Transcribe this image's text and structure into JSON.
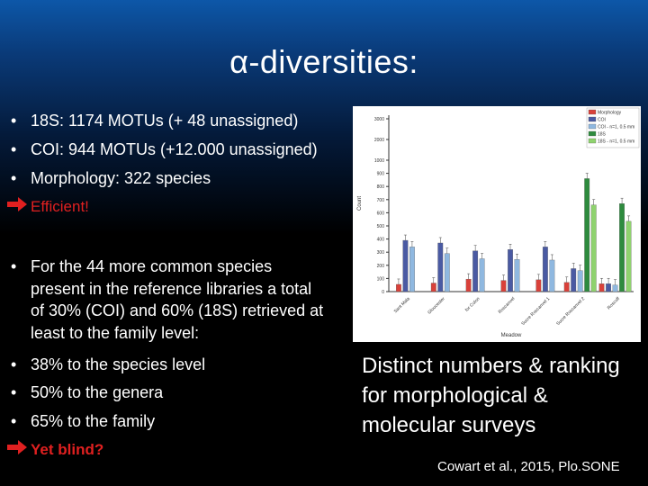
{
  "slide": {
    "title": "α-diversities:",
    "bullets_top": [
      "18S: 1174 MOTUs (+ 48 unassigned)",
      "COI: 944 MOTUs (+12.000 unassigned)",
      "Morphology: 322 species"
    ],
    "efficient": "Efficient!",
    "bullets_bottom": [
      "For the 44 more common species present in the reference libraries a total of 30% (COI) and 60% (18S) retrieved at least to the family level:",
      "38% to the species level",
      "50% to the genera",
      "65% to the family"
    ],
    "yet_blind": "Yet blind?",
    "right_text": "Distinct numbers & ranking for morphological & molecular surveys",
    "citation": "Cowart et al., 2015, Plo.SONE",
    "colors": {
      "arrow_red": "#e02020",
      "bullet": "#ffffff"
    }
  },
  "chart_data": {
    "type": "bar",
    "xlabel": "Meadow",
    "ylabel": "Count",
    "yticks": [
      0,
      100,
      200,
      300,
      400,
      500,
      600,
      700,
      800,
      900,
      1000,
      2000,
      3000
    ],
    "categories": [
      "Sant Mala",
      "Gloucester",
      "for Colon",
      "Roscanvel",
      "Sucre Roscanvel 1",
      "Sucre Roscanvel 2",
      "Roscoff"
    ],
    "legend": [
      "Morphology",
      "COI",
      "COI - n=1, 0.5 mm",
      "18S",
      "18S - n=1, 0.5 mm"
    ],
    "legend_position": "top-right",
    "series": [
      {
        "name": "Morphology",
        "color": "#d9413a",
        "values": [
          55,
          65,
          95,
          85,
          90,
          70,
          60
        ]
      },
      {
        "name": "COI",
        "color": "#4a5aa3",
        "values": [
          390,
          370,
          310,
          320,
          340,
          175,
          60
        ]
      },
      {
        "name": "COI - n=1, 0.5 mm",
        "color": "#8fb8e0",
        "values": [
          340,
          290,
          250,
          245,
          240,
          160,
          50
        ]
      },
      {
        "name": "18S",
        "color": "#2e8b3e",
        "values": [
          null,
          null,
          null,
          null,
          null,
          860,
          670
        ]
      },
      {
        "name": "18S - n=1, 0.5 mm",
        "color": "#8fd36e",
        "values": [
          null,
          null,
          null,
          null,
          null,
          660,
          535
        ]
      }
    ]
  }
}
